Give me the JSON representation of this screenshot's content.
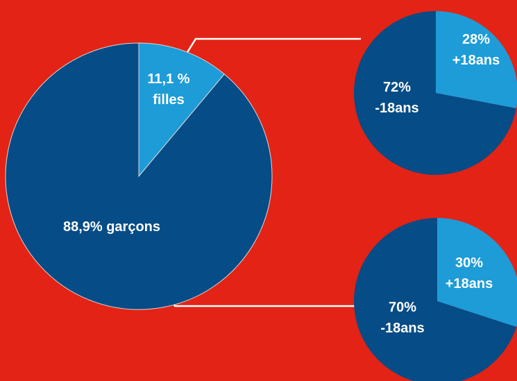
{
  "colors": {
    "background": "#e32315",
    "dark_blue": "#064c86",
    "light_blue": "#1d9cd8",
    "connector": "#ffffff"
  },
  "chart_data": [
    {
      "type": "pie",
      "slices": [
        {
          "value": 11.1,
          "color": "#1d9cd8",
          "label_line1": "11,1 %",
          "label_line2": "filles"
        },
        {
          "value": 88.9,
          "color": "#064c86",
          "label_line1": "88,9% garçons",
          "label_line2": ""
        }
      ]
    },
    {
      "type": "pie",
      "slices": [
        {
          "value": 28,
          "color": "#1d9cd8",
          "label_line1": "28%",
          "label_line2": "+18ans"
        },
        {
          "value": 72,
          "color": "#064c86",
          "label_line1": "72%",
          "label_line2": "-18ans"
        }
      ]
    },
    {
      "type": "pie",
      "slices": [
        {
          "value": 30,
          "color": "#1d9cd8",
          "label_line1": "30%",
          "label_line2": "+18ans"
        },
        {
          "value": 70,
          "color": "#064c86",
          "label_line1": "70%",
          "label_line2": "-18ans"
        }
      ]
    }
  ]
}
